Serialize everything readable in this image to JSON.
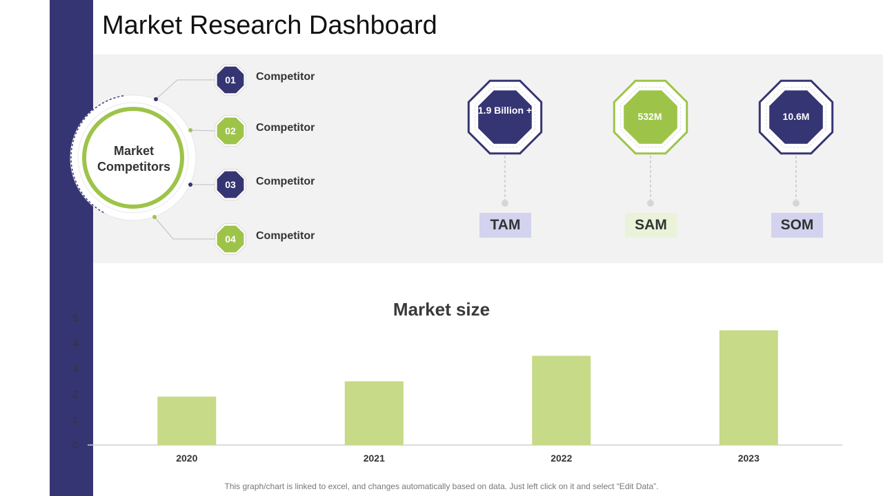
{
  "title": "Market Research Dashboard",
  "competitors": {
    "center_label": "Market Competitors",
    "items": [
      {
        "number": "01",
        "label": "Competitor",
        "color": "#363573"
      },
      {
        "number": "02",
        "label": "Competitor",
        "color": "#9dc449"
      },
      {
        "number": "03",
        "label": "Competitor",
        "color": "#363573"
      },
      {
        "number": "04",
        "label": "Competitor",
        "color": "#9dc449"
      }
    ]
  },
  "metrics": [
    {
      "value": "1.9 Billion +",
      "label": "TAM",
      "color": "#363573",
      "label_bg": "#d3d3ef"
    },
    {
      "value": "532M",
      "label": "SAM",
      "color": "#9dc449",
      "label_bg": "#eaf2d9"
    },
    {
      "value": "10.6M",
      "label": "SOM",
      "color": "#363573",
      "label_bg": "#d3d3ef"
    }
  ],
  "chart_data": {
    "type": "bar",
    "title": "Market size",
    "categories": [
      "2020",
      "2021",
      "2022",
      "2023"
    ],
    "values": [
      1.9,
      2.5,
      3.5,
      4.5
    ],
    "ylim": [
      0,
      5
    ],
    "yticks": [
      0,
      1,
      2,
      3,
      4,
      5
    ],
    "xlabel": "",
    "ylabel": "",
    "grid": false,
    "bar_color": "#c6da87"
  },
  "footnote": "This graph/chart is linked to excel, and changes automatically based on data. Just left click on it and select “Edit Data”."
}
